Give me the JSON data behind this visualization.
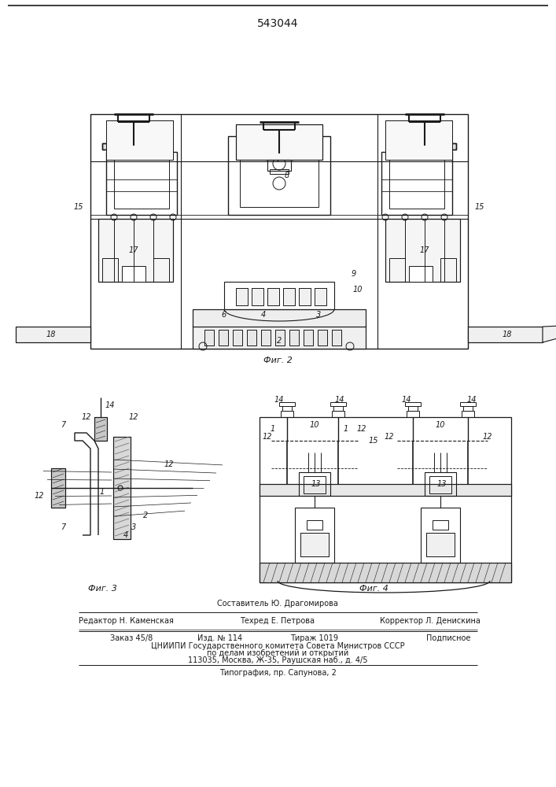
{
  "patent_number": "543044",
  "fig2_caption": "Фиг. 2",
  "fig3_caption": "Фиг. 3",
  "fig4_caption": "Фиг. 4",
  "footer_line1": "Составитель Ю. Драгомирова",
  "footer_line2_left": "Редактор Н. Каменская",
  "footer_line2_mid": "Техред Е. Петрова",
  "footer_line2_right": "Корректор Л. Денискина",
  "footer_line3_left": "Заказ 45/8",
  "footer_line3_mid1": "Изд. № 114",
  "footer_line3_mid2": "Тираж 1019",
  "footer_line3_right": "Подписное",
  "footer_line4": "ЦНИИПИ Государственного комитета Совета Министров СССР",
  "footer_line5": "по делам изобретений и открытий",
  "footer_line6": "113035, Москва, Ж-35, Раушская наб., д. 4/5",
  "footer_line7": "Типография, пр. Сапунова, 2",
  "bg_color": "#ffffff",
  "lc": "#1a1a1a"
}
